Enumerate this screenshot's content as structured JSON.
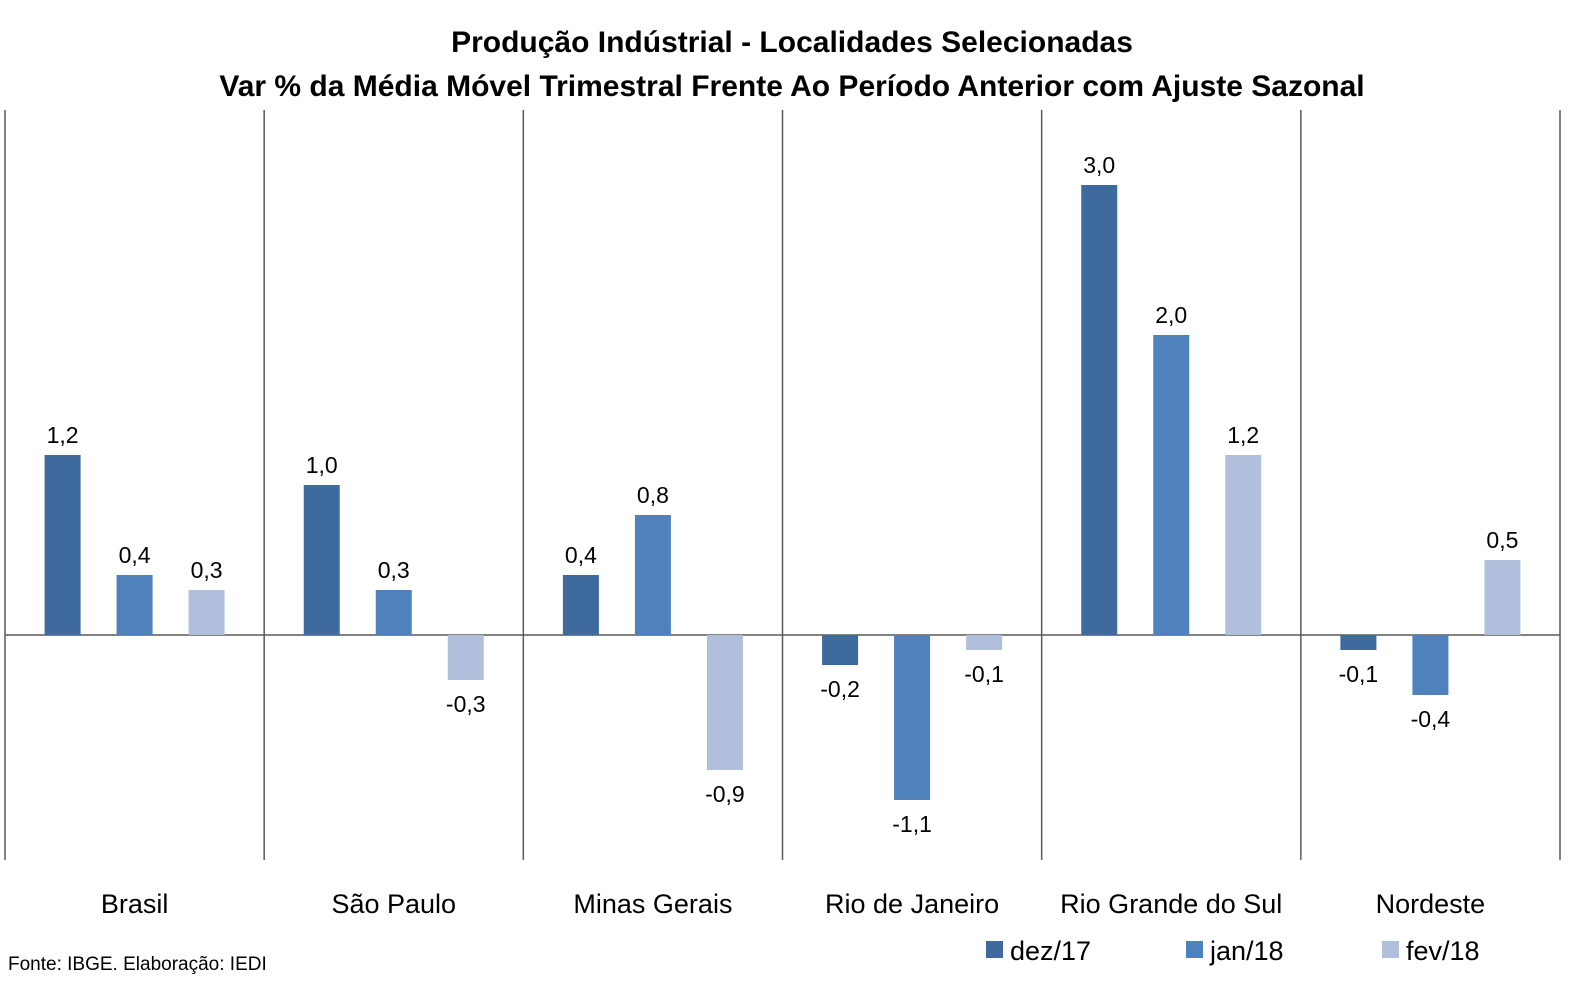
{
  "chart_data": {
    "type": "bar",
    "title": "Produção Indústrial - Localidades Selecionadas",
    "subtitle": "Var % da Média Móvel Trimestral Frente Ao Período Anterior com Ajuste Sazonal",
    "categories": [
      "Brasil",
      "São Paulo",
      "Minas Gerais",
      "Rio de Janeiro",
      "Rio Grande do Sul",
      "Nordeste"
    ],
    "series": [
      {
        "name": "dez/17",
        "color": "#3E6A9E",
        "values": [
          1.2,
          1.0,
          0.4,
          -0.2,
          3.0,
          -0.1
        ],
        "labels": [
          "1,2",
          "1,0",
          "0,4",
          "-0,2",
          "3,0",
          "-0,1"
        ]
      },
      {
        "name": "jan/18",
        "color": "#4F81BD",
        "values": [
          0.4,
          0.3,
          0.8,
          -1.1,
          2.0,
          -0.4
        ],
        "labels": [
          "0,4",
          "0,3",
          "0,8",
          "-1,1",
          "2,0",
          "-0,4"
        ]
      },
      {
        "name": "fev/18",
        "color": "#AFBFDC",
        "values": [
          0.3,
          -0.3,
          -0.9,
          -0.1,
          1.2,
          0.5
        ],
        "labels": [
          "0,3",
          "-0,3",
          "-0,9",
          "-0,1",
          "1,2",
          "0,5"
        ]
      }
    ],
    "legend_position": "bottom-right",
    "grid": false,
    "ylim": [
      -1.5,
      3.5
    ]
  },
  "source_note": "Fonte: IBGE. Elaboração: IEDI"
}
